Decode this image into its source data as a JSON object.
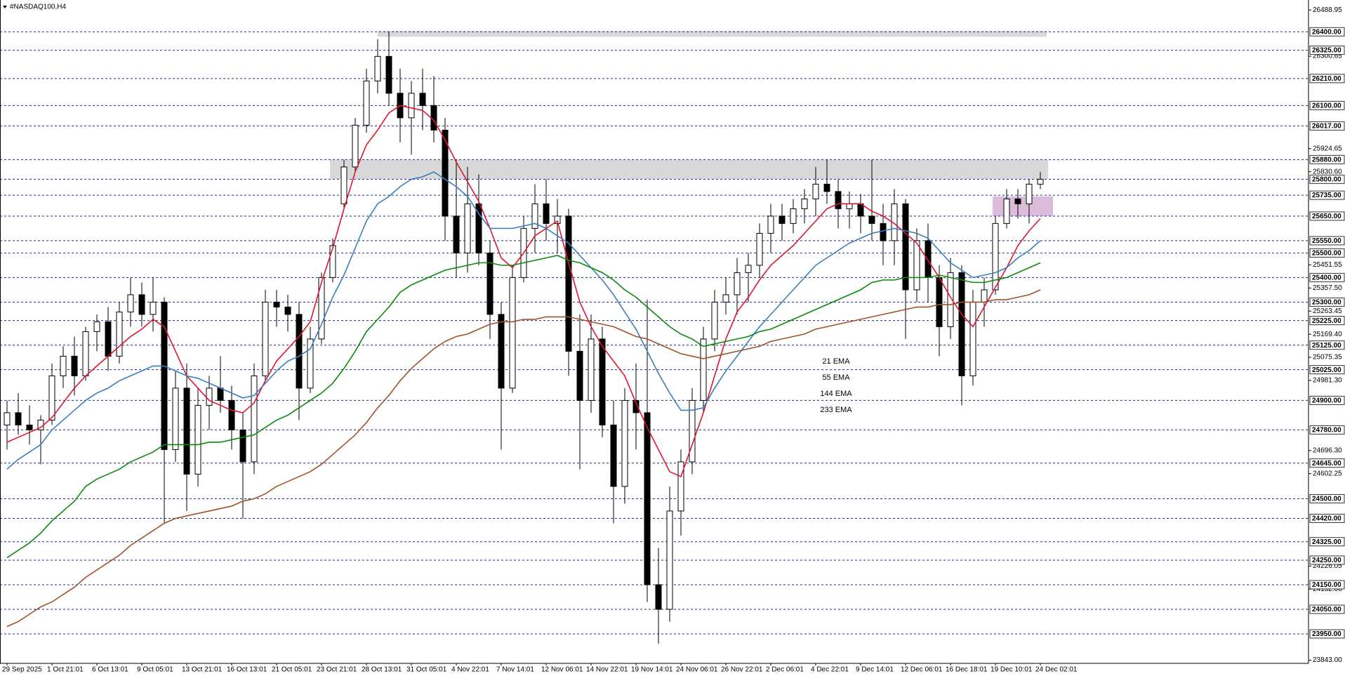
{
  "chart_data": {
    "type": "candlestick",
    "title": "#NASDAQ100,H4",
    "categories": [
      "29 Sep 2025",
      null,
      null,
      null,
      "1 Oct 21:01",
      null,
      null,
      null,
      "6 Oct 13:01",
      null,
      null,
      null,
      "9 Oct 05:01",
      null,
      null,
      null,
      "13 Oct 21:01",
      null,
      null,
      null,
      "16 Oct 13:01",
      null,
      null,
      null,
      "21 Oct 05:01",
      null,
      null,
      null,
      "23 Oct 21:01",
      null,
      null,
      null,
      "28 Oct 13:01",
      null,
      null,
      null,
      "31 Oct 05:01",
      null,
      null,
      null,
      "4 Nov 22:01",
      null,
      null,
      null,
      "7 Nov 14:01",
      null,
      null,
      null,
      "12 Nov 06:01",
      null,
      null,
      null,
      "14 Nov 22:01",
      null,
      null,
      null,
      "19 Nov 14:01",
      null,
      null,
      null,
      "24 Nov 06:01",
      null,
      null,
      null,
      "26 Nov 22:01",
      null,
      null,
      null,
      "2 Dec 06:01",
      null,
      null,
      null,
      "4 Dec 22:01",
      null,
      null,
      null,
      "9 Dec 14:01",
      null,
      null,
      null,
      "12 Dec 06:01",
      null,
      null,
      null,
      "16 Dec 18:01",
      null,
      null,
      null,
      "19 Dec 10:01",
      null,
      null,
      null,
      "24 Dec 02:01"
    ],
    "open": [
      24800,
      24850,
      24800,
      24780,
      24820,
      25000,
      25080,
      25000,
      25180,
      25220,
      25080,
      25260,
      25330,
      25250,
      25300,
      24700,
      24950,
      24600,
      24880,
      24950,
      24900,
      24780,
      24650,
      25000,
      25300,
      25280,
      25250,
      24950,
      25150,
      25400,
      25700,
      25850,
      26020,
      26200,
      26300,
      26150,
      26050,
      26150,
      26100,
      26000,
      25650,
      25500,
      25700,
      25500,
      25250,
      24950,
      25400,
      25600,
      25700,
      25620,
      25650,
      25100,
      24900,
      25150,
      24800,
      24550,
      24900,
      24850,
      24150,
      24050,
      24450,
      24650,
      24900,
      25150,
      25300,
      25330,
      25420,
      25450,
      25580,
      25650,
      25620,
      25680,
      25720,
      25780,
      25750,
      25680,
      25700,
      25650,
      25620,
      25550,
      25700,
      25350,
      25550,
      25400,
      25200,
      25420,
      25000,
      25300,
      25350,
      25620,
      25720,
      25700,
      25780
    ],
    "high": [
      24900,
      24930,
      24880,
      24840,
      25050,
      25120,
      25160,
      25200,
      25250,
      25280,
      25300,
      25400,
      25380,
      25400,
      25320,
      25020,
      25050,
      24950,
      25000,
      25080,
      24960,
      24850,
      25050,
      25350,
      25350,
      25330,
      25300,
      25200,
      25420,
      25560,
      25880,
      26050,
      26250,
      26370,
      26400,
      26250,
      26200,
      26250,
      26220,
      26050,
      25880,
      25850,
      25820,
      25550,
      25300,
      25450,
      25650,
      25780,
      25800,
      25720,
      25680,
      25250,
      25250,
      25200,
      24900,
      24950,
      25050,
      25310,
      24300,
      24550,
      24700,
      24950,
      25200,
      25350,
      25400,
      25480,
      25500,
      25620,
      25700,
      25700,
      25720,
      25760,
      25850,
      25880,
      25800,
      25750,
      25740,
      25880,
      25700,
      25760,
      25720,
      25600,
      25620,
      25450,
      25480,
      25450,
      25350,
      25400,
      25650,
      25760,
      25760,
      25800,
      25830
    ],
    "low": [
      24700,
      24760,
      24720,
      24640,
      24800,
      24950,
      24920,
      24980,
      25100,
      25020,
      25050,
      25200,
      25200,
      25180,
      24400,
      24650,
      24450,
      24550,
      24780,
      24850,
      24700,
      24420,
      24600,
      24980,
      25200,
      25180,
      24820,
      24930,
      25130,
      25380,
      25680,
      25830,
      25990,
      26150,
      26100,
      25950,
      25900,
      26000,
      25950,
      25550,
      25400,
      25420,
      25450,
      25150,
      24700,
      24930,
      25380,
      25500,
      25550,
      25500,
      25000,
      24620,
      24850,
      24750,
      24400,
      24480,
      24700,
      24080,
      23910,
      24000,
      24350,
      24600,
      24850,
      25100,
      25250,
      25250,
      25300,
      25400,
      25500,
      25550,
      25580,
      25620,
      25650,
      25700,
      25600,
      25600,
      25580,
      25550,
      25450,
      25450,
      25150,
      25300,
      25300,
      25080,
      25150,
      24880,
      24960,
      25200,
      25330,
      25600,
      25640,
      25620,
      25760
    ],
    "close": [
      24850,
      24800,
      24780,
      24820,
      25000,
      25080,
      25000,
      25180,
      25220,
      25080,
      25260,
      25330,
      25250,
      25300,
      24700,
      24950,
      24600,
      24880,
      24950,
      24900,
      24780,
      24650,
      25000,
      25300,
      25280,
      25250,
      24950,
      25150,
      25400,
      25530,
      25850,
      26020,
      26200,
      26300,
      26150,
      26050,
      26150,
      26100,
      26000,
      25650,
      25500,
      25700,
      25500,
      25250,
      24950,
      25400,
      25600,
      25700,
      25620,
      25650,
      25100,
      24900,
      25150,
      24800,
      24550,
      24900,
      24850,
      24150,
      24050,
      24450,
      24650,
      24900,
      25150,
      25300,
      25330,
      25420,
      25450,
      25580,
      25650,
      25620,
      25680,
      25720,
      25780,
      25750,
      25680,
      25700,
      25650,
      25620,
      25550,
      25700,
      25350,
      25550,
      25400,
      25200,
      25420,
      25000,
      25300,
      25350,
      25620,
      25720,
      25700,
      25780,
      25800
    ],
    "series": [
      {
        "name": "21 EMA",
        "color": "#e0142f",
        "values": [
          24730,
          24750,
          24770,
          24790,
          24830,
          24890,
          24950,
          25000,
          25040,
          25080,
          25120,
          25160,
          25190,
          25230,
          25200,
          25100,
          25000,
          24950,
          24900,
          24880,
          24860,
          24850,
          24890,
          24980,
          25060,
          25110,
          25160,
          25220,
          25380,
          25520,
          25680,
          25830,
          25940,
          26000,
          26070,
          26100,
          26090,
          26080,
          26040,
          25960,
          25870,
          25790,
          25710,
          25600,
          25480,
          25440,
          25500,
          25570,
          25600,
          25630,
          25460,
          25300,
          25200,
          25120,
          25060,
          25000,
          24890,
          24790,
          24700,
          24610,
          24590,
          24720,
          24850,
          25000,
          25150,
          25260,
          25320,
          25390,
          25450,
          25490,
          25530,
          25580,
          25630,
          25680,
          25700,
          25700,
          25700,
          25670,
          25650,
          25620,
          25580,
          25540,
          25470,
          25400,
          25320,
          25250,
          25200,
          25280,
          25360,
          25440,
          25530,
          25590,
          25640
        ]
      },
      {
        "name": "55 EMA",
        "color": "#3a7ebf",
        "values": [
          24620,
          24660,
          24690,
          24720,
          24780,
          24820,
          24860,
          24900,
          24930,
          24950,
          24980,
          25000,
          25020,
          25040,
          25040,
          25020,
          25000,
          24990,
          24970,
          24950,
          24930,
          24910,
          24920,
          24970,
          25020,
          25060,
          25080,
          25110,
          25210,
          25320,
          25410,
          25520,
          25630,
          25700,
          25730,
          25770,
          25800,
          25810,
          25830,
          25800,
          25770,
          25730,
          25660,
          25600,
          25600,
          25600,
          25610,
          25620,
          25600,
          25570,
          25540,
          25490,
          25440,
          25390,
          25330,
          25260,
          25190,
          25100,
          25010,
          24930,
          24860,
          24860,
          24870,
          24950,
          25020,
          25080,
          25140,
          25200,
          25250,
          25300,
          25350,
          25400,
          25450,
          25480,
          25510,
          25540,
          25560,
          25580,
          25590,
          25600,
          25590,
          25580,
          25560,
          25510,
          25460,
          25430,
          25400,
          25410,
          25420,
          25440,
          25480,
          25510,
          25550
        ]
      },
      {
        "name": "144 EMA",
        "color": "#0a8a0a",
        "values": [
          24260,
          24290,
          24320,
          24360,
          24410,
          24450,
          24490,
          24550,
          24580,
          24600,
          24620,
          24650,
          24670,
          24690,
          24720,
          24720,
          24720,
          24720,
          24730,
          24730,
          24740,
          24750,
          24760,
          24790,
          24820,
          24840,
          24870,
          24900,
          24930,
          24970,
          25030,
          25100,
          25180,
          25230,
          25280,
          25340,
          25370,
          25390,
          25410,
          25430,
          25440,
          25450,
          25460,
          25460,
          25450,
          25450,
          25460,
          25470,
          25480,
          25490,
          25470,
          25460,
          25440,
          25420,
          25390,
          25350,
          25320,
          25280,
          25240,
          25200,
          25170,
          25150,
          25120,
          25130,
          25140,
          25150,
          25160,
          25180,
          25190,
          25210,
          25230,
          25250,
          25270,
          25290,
          25310,
          25330,
          25350,
          25380,
          25390,
          25390,
          25400,
          25400,
          25400,
          25410,
          25400,
          25390,
          25380,
          25380,
          25390,
          25400,
          25420,
          25440,
          25460
        ]
      },
      {
        "name": "233 EMA",
        "color": "#a0522d",
        "values": [
          23980,
          24000,
          24030,
          24060,
          24080,
          24110,
          24140,
          24180,
          24210,
          24240,
          24270,
          24310,
          24340,
          24370,
          24400,
          24420,
          24430,
          24440,
          24450,
          24460,
          24470,
          24490,
          24500,
          24520,
          24550,
          24570,
          24590,
          24610,
          24640,
          24680,
          24720,
          24760,
          24810,
          24870,
          24920,
          24980,
          25030,
          25070,
          25110,
          25140,
          25160,
          25170,
          25190,
          25210,
          25220,
          25220,
          25230,
          25230,
          25240,
          25240,
          25240,
          25230,
          25220,
          25210,
          25200,
          25180,
          25160,
          25150,
          25130,
          25110,
          25090,
          25080,
          25070,
          25080,
          25090,
          25100,
          25110,
          25120,
          25140,
          25150,
          25160,
          25170,
          25190,
          25200,
          25210,
          25220,
          25230,
          25240,
          25250,
          25260,
          25270,
          25280,
          25280,
          25290,
          25290,
          25300,
          25300,
          25300,
          25310,
          25310,
          25320,
          25330,
          25350
        ]
      }
    ],
    "zones": [
      {
        "low": 26380,
        "high": 26403,
        "color": "#d4d4d4"
      },
      {
        "low": 25800,
        "high": 25880,
        "color": "#d4d4d4"
      },
      {
        "low": 25650,
        "high": 25730,
        "color": "#d7b6d7"
      }
    ],
    "level_color": "#1c2a8a",
    "levels": [
      {
        "value": 26400,
        "label": "26400.00"
      },
      {
        "value": 26325,
        "label": "26325.00"
      },
      {
        "value": 26210,
        "label": "26210.00"
      },
      {
        "value": 26100,
        "label": "26100.00"
      },
      {
        "value": 26017,
        "label": "26017.00"
      },
      {
        "value": 25880,
        "label": "25880.00"
      },
      {
        "value": 25800,
        "label": "25800.00"
      },
      {
        "value": 25735,
        "label": "25735.00"
      },
      {
        "value": 25650,
        "label": "25650.00"
      },
      {
        "value": 25550,
        "label": "25550.00"
      },
      {
        "value": 25500,
        "label": "25500.00"
      },
      {
        "value": 25400,
        "label": "25400.00"
      },
      {
        "value": 25300,
        "label": "25300.00"
      },
      {
        "value": 25225,
        "label": "25225.00"
      },
      {
        "value": 25125,
        "label": "25125.00"
      },
      {
        "value": 25025,
        "label": "25025.00"
      },
      {
        "value": 24900,
        "label": "24900.00"
      },
      {
        "value": 24780,
        "label": "24780.00"
      },
      {
        "value": 24645,
        "label": "24645.00"
      },
      {
        "value": 24500,
        "label": "24500.00"
      },
      {
        "value": 24420,
        "label": "24420.00"
      },
      {
        "value": 24325,
        "label": "24325.00"
      },
      {
        "value": 24250,
        "label": "24250.00"
      },
      {
        "value": 24150,
        "label": "24150.00"
      },
      {
        "value": 24050,
        "label": "24050.00"
      },
      {
        "value": 23950,
        "label": "23950.00"
      }
    ],
    "yticks": [
      {
        "value": 26488.95,
        "label": "26488.95"
      },
      {
        "value": 26300.65,
        "label": "26300.65"
      },
      {
        "value": 25924.65,
        "label": "25924.65"
      },
      {
        "value": 25830.6,
        "label": "25830.60"
      },
      {
        "value": 25451.55,
        "label": "25451.55"
      },
      {
        "value": 25357.5,
        "label": "25357.50"
      },
      {
        "value": 25263.45,
        "label": "25263.45"
      },
      {
        "value": 25169.4,
        "label": "25169.40"
      },
      {
        "value": 25075.35,
        "label": "25075.35"
      },
      {
        "value": 24981.3,
        "label": "24981.30"
      },
      {
        "value": 24696.3,
        "label": "24696.30"
      },
      {
        "value": 24602.25,
        "label": "24602.25"
      },
      {
        "value": 24226.05,
        "label": "24226.05"
      },
      {
        "value": 24132,
        "label": "24132.00"
      },
      {
        "value": 23843,
        "label": "23843.00"
      }
    ],
    "ylim": [
      23830,
      26518
    ]
  }
}
